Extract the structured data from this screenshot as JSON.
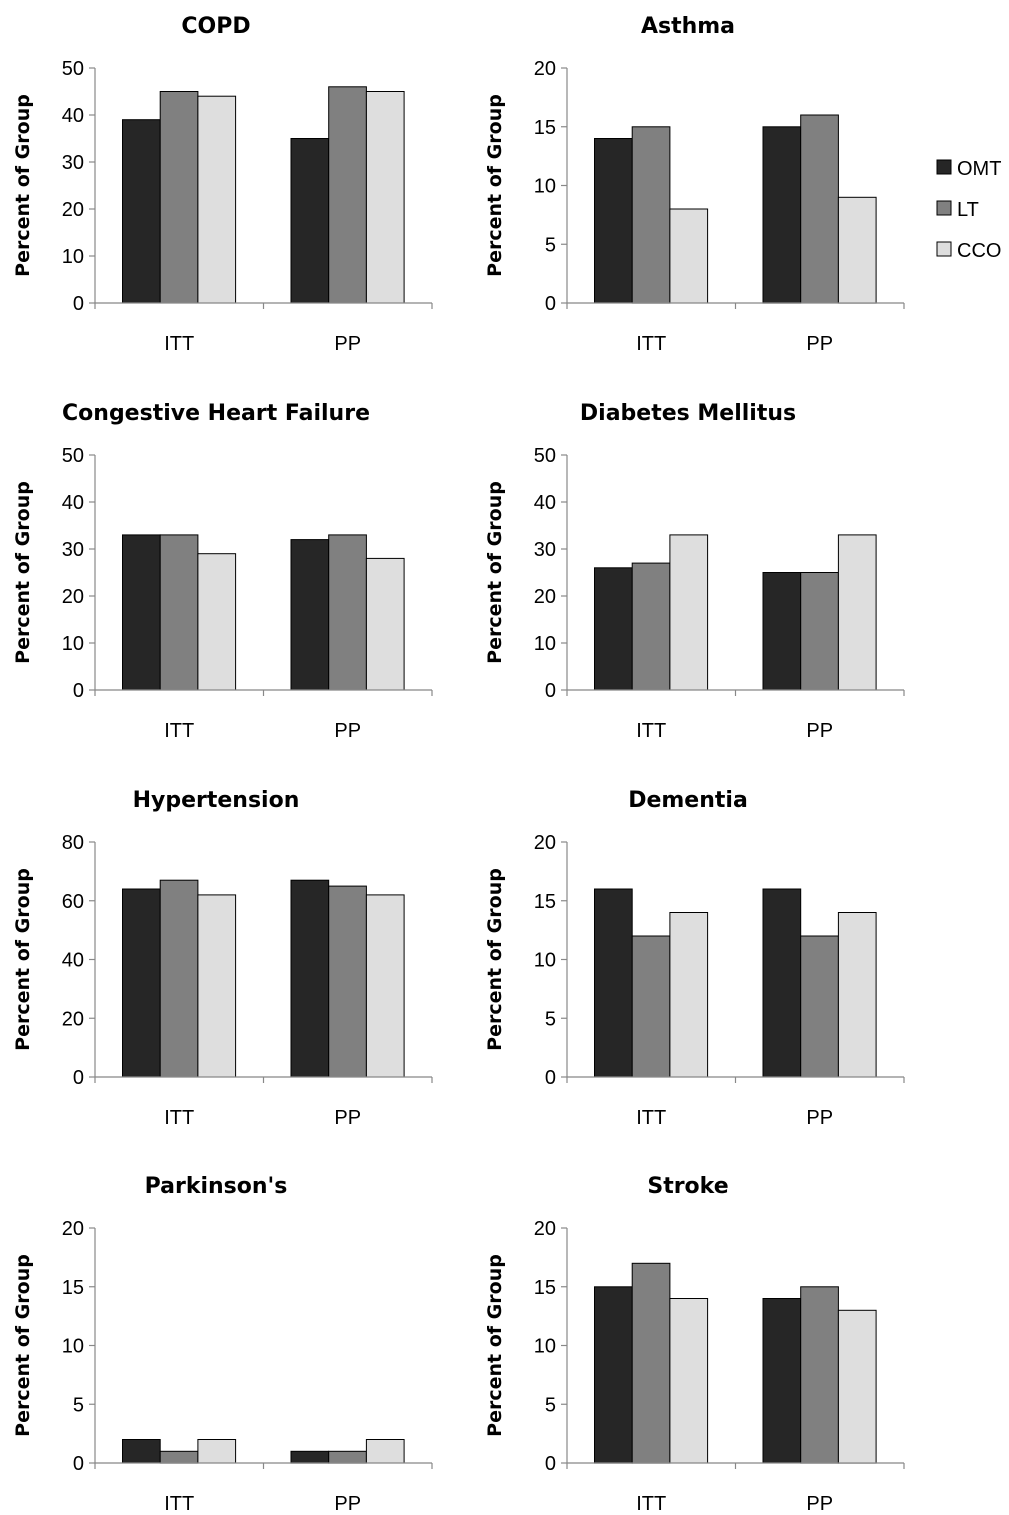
{
  "legend": [
    {
      "name": "OMT",
      "color": "#262626"
    },
    {
      "name": "LT",
      "color": "#808080"
    },
    {
      "name": "CCO",
      "color": "#dedede"
    }
  ],
  "chart_data": [
    {
      "type": "bar",
      "title": "COPD",
      "ylabel": "Percent of Group",
      "categories": [
        "ITT",
        "PP"
      ],
      "ylim": [
        0,
        50
      ],
      "yticks": [
        0,
        10,
        20,
        30,
        40,
        50
      ],
      "series": [
        {
          "name": "OMT",
          "values": [
            39,
            35
          ]
        },
        {
          "name": "LT",
          "values": [
            45,
            46
          ]
        },
        {
          "name": "CCO",
          "values": [
            44,
            45
          ]
        }
      ]
    },
    {
      "type": "bar",
      "title": "Asthma",
      "ylabel": "Percent of Group",
      "categories": [
        "ITT",
        "PP"
      ],
      "ylim": [
        0,
        20
      ],
      "yticks": [
        0,
        5,
        10,
        15,
        20
      ],
      "series": [
        {
          "name": "OMT",
          "values": [
            14,
            15
          ]
        },
        {
          "name": "LT",
          "values": [
            15,
            16
          ]
        },
        {
          "name": "CCO",
          "values": [
            8,
            9
          ]
        }
      ]
    },
    {
      "type": "bar",
      "title": "Congestive Heart Failure",
      "ylabel": "Percent of Group",
      "categories": [
        "ITT",
        "PP"
      ],
      "ylim": [
        0,
        50
      ],
      "yticks": [
        0,
        10,
        20,
        30,
        40,
        50
      ],
      "series": [
        {
          "name": "OMT",
          "values": [
            33,
            32
          ]
        },
        {
          "name": "LT",
          "values": [
            33,
            33
          ]
        },
        {
          "name": "CCO",
          "values": [
            29,
            28
          ]
        }
      ]
    },
    {
      "type": "bar",
      "title": "Diabetes Mellitus",
      "ylabel": "Percent of Group",
      "categories": [
        "ITT",
        "PP"
      ],
      "ylim": [
        0,
        50
      ],
      "yticks": [
        0,
        10,
        20,
        30,
        40,
        50
      ],
      "series": [
        {
          "name": "OMT",
          "values": [
            26,
            25
          ]
        },
        {
          "name": "LT",
          "values": [
            27,
            25
          ]
        },
        {
          "name": "CCO",
          "values": [
            33,
            33
          ]
        }
      ]
    },
    {
      "type": "bar",
      "title": "Hypertension",
      "ylabel": "Percent of Group",
      "categories": [
        "ITT",
        "PP"
      ],
      "ylim": [
        0,
        80
      ],
      "yticks": [
        0,
        20,
        40,
        60,
        80
      ],
      "series": [
        {
          "name": "OMT",
          "values": [
            64,
            67
          ]
        },
        {
          "name": "LT",
          "values": [
            67,
            65
          ]
        },
        {
          "name": "CCO",
          "values": [
            62,
            62
          ]
        }
      ]
    },
    {
      "type": "bar",
      "title": "Dementia",
      "ylabel": "Percent of Group",
      "categories": [
        "ITT",
        "PP"
      ],
      "ylim": [
        0,
        20
      ],
      "yticks": [
        0,
        5,
        10,
        15,
        20
      ],
      "series": [
        {
          "name": "OMT",
          "values": [
            16,
            16
          ]
        },
        {
          "name": "LT",
          "values": [
            12,
            12
          ]
        },
        {
          "name": "CCO",
          "values": [
            14,
            14
          ]
        }
      ]
    },
    {
      "type": "bar",
      "title": "Parkinson's",
      "ylabel": "Percent of Group",
      "categories": [
        "ITT",
        "PP"
      ],
      "ylim": [
        0,
        20
      ],
      "yticks": [
        0,
        5,
        10,
        15,
        20
      ],
      "series": [
        {
          "name": "OMT",
          "values": [
            2,
            1
          ]
        },
        {
          "name": "LT",
          "values": [
            1,
            1
          ]
        },
        {
          "name": "CCO",
          "values": [
            2,
            2
          ]
        }
      ]
    },
    {
      "type": "bar",
      "title": "Stroke",
      "ylabel": "Percent of Group",
      "categories": [
        "ITT",
        "PP"
      ],
      "ylim": [
        0,
        20
      ],
      "yticks": [
        0,
        5,
        10,
        15,
        20
      ],
      "series": [
        {
          "name": "OMT",
          "values": [
            15,
            14
          ]
        },
        {
          "name": "LT",
          "values": [
            17,
            15
          ]
        },
        {
          "name": "CCO",
          "values": [
            14,
            13
          ]
        }
      ]
    }
  ]
}
